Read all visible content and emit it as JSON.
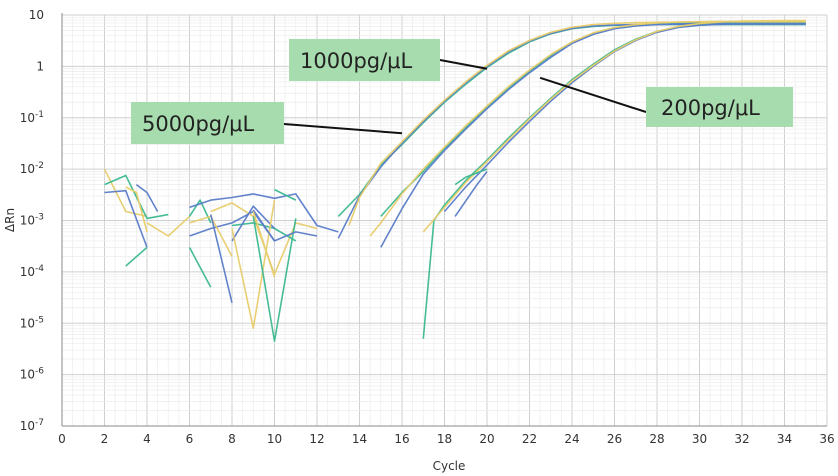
{
  "chart_data": {
    "type": "line",
    "title": "",
    "xlabel": "Cycle",
    "ylabel": "ΔRn",
    "xlim": [
      0,
      36
    ],
    "ylim": [
      1e-07,
      10
    ],
    "y_scale": "log",
    "grid": true,
    "x_ticks": [
      "0",
      "2",
      "4",
      "6",
      "8",
      "10",
      "12",
      "14",
      "16",
      "18",
      "20",
      "22",
      "24",
      "26",
      "28",
      "30",
      "32",
      "34",
      "36"
    ],
    "y_ticks": [
      {
        "value": 10,
        "base": "10",
        "exp": ""
      },
      {
        "value": 1,
        "base": "1",
        "exp": ""
      },
      {
        "value": 0.1,
        "base": "10",
        "exp": "-1"
      },
      {
        "value": 0.01,
        "base": "10",
        "exp": "-2"
      },
      {
        "value": 0.001,
        "base": "10",
        "exp": "-3"
      },
      {
        "value": 0.0001,
        "base": "10",
        "exp": "-4"
      },
      {
        "value": 1e-05,
        "base": "10",
        "exp": "-5"
      },
      {
        "value": 1e-06,
        "base": "10",
        "exp": "-6"
      },
      {
        "value": 1e-07,
        "base": "10",
        "exp": "-7"
      }
    ],
    "colors": {
      "green": "#3cb890",
      "blue": "#5a7cc8",
      "yellow": "#e8cc6a",
      "grid": "#d8d8d8",
      "callout_bg": "#a7dcae"
    },
    "annotations": [
      {
        "text": "1000pg/μL",
        "pointer_to": [
          20.0,
          0.9
        ]
      },
      {
        "text": "5000pg/μL",
        "pointer_to": [
          16.0,
          0.05
        ]
      },
      {
        "text": "200pg/μL",
        "pointer_to": [
          22.5,
          0.6
        ]
      }
    ],
    "series": [
      {
        "color": "green",
        "x": [
          13,
          14,
          15,
          16,
          17,
          18,
          19,
          20,
          21,
          22,
          23,
          24,
          25,
          26,
          27,
          28,
          29,
          30,
          31,
          32,
          33,
          34,
          35
        ],
        "y": [
          0.0012,
          0.0032,
          0.012,
          0.03,
          0.08,
          0.2,
          0.45,
          0.95,
          1.8,
          3.0,
          4.3,
          5.4,
          6.0,
          6.3,
          6.4,
          6.5,
          6.5,
          6.5,
          6.5,
          6.5,
          6.5,
          6.5,
          6.5
        ]
      },
      {
        "color": "blue",
        "x": [
          13,
          14,
          15,
          16,
          17,
          18,
          19,
          20,
          21,
          22,
          23,
          24,
          25,
          26,
          27,
          28,
          29,
          30,
          31,
          32,
          33,
          34,
          35
        ],
        "y": [
          0.00045,
          0.003,
          0.011,
          0.032,
          0.085,
          0.21,
          0.48,
          1.0,
          1.9,
          3.1,
          4.4,
          5.5,
          6.1,
          6.4,
          6.5,
          6.6,
          6.6,
          6.6,
          6.6,
          6.6,
          6.6,
          6.6,
          6.6
        ]
      },
      {
        "color": "yellow",
        "x": [
          13.5,
          14,
          15,
          16,
          17,
          18,
          19,
          20,
          21,
          22,
          23,
          24,
          25,
          26,
          27,
          28,
          29,
          30,
          31,
          32,
          33,
          34,
          35
        ],
        "y": [
          0.0008,
          0.0028,
          0.013,
          0.034,
          0.09,
          0.22,
          0.5,
          1.05,
          2.0,
          3.2,
          4.6,
          5.8,
          6.5,
          6.9,
          7.1,
          7.2,
          7.3,
          7.3,
          7.3,
          7.3,
          7.3,
          7.3,
          7.3
        ]
      },
      {
        "color": "green",
        "x": [
          15,
          16,
          17,
          18,
          19,
          20,
          21,
          22,
          23,
          24,
          25,
          26,
          27,
          28,
          29,
          30,
          31,
          32,
          33,
          34,
          35
        ],
        "y": [
          0.0012,
          0.0035,
          0.009,
          0.025,
          0.065,
          0.16,
          0.37,
          0.8,
          1.6,
          2.9,
          4.3,
          5.5,
          6.2,
          6.6,
          6.8,
          6.9,
          6.9,
          6.9,
          6.9,
          6.9,
          6.9
        ]
      },
      {
        "color": "blue",
        "x": [
          15,
          16,
          17,
          18,
          19,
          20,
          21,
          22,
          23,
          24,
          25,
          26,
          27,
          28,
          29,
          30,
          31,
          32,
          33,
          34,
          35
        ],
        "y": [
          0.0003,
          0.0017,
          0.008,
          0.023,
          0.06,
          0.15,
          0.35,
          0.75,
          1.5,
          2.8,
          4.2,
          5.4,
          6.1,
          6.5,
          6.7,
          6.8,
          6.8,
          6.8,
          6.8,
          6.8,
          6.8
        ]
      },
      {
        "color": "yellow",
        "x": [
          14.5,
          15,
          16,
          17,
          18,
          19,
          20,
          21,
          22,
          23,
          24,
          25,
          26,
          27,
          28,
          29,
          30,
          31,
          32,
          33,
          34,
          35
        ],
        "y": [
          0.0005,
          0.0009,
          0.0033,
          0.01,
          0.027,
          0.07,
          0.17,
          0.4,
          0.85,
          1.7,
          3.0,
          4.5,
          5.7,
          6.5,
          7.0,
          7.3,
          7.4,
          7.5,
          7.5,
          7.5,
          7.5,
          7.5
        ]
      },
      {
        "color": "green",
        "x": [
          17,
          17.5,
          18,
          19,
          20,
          21,
          22,
          23,
          24,
          25,
          26,
          27,
          28,
          29,
          30,
          31,
          32,
          33,
          34,
          35
        ],
        "y": [
          5e-06,
          0.001,
          0.002,
          0.006,
          0.015,
          0.04,
          0.1,
          0.24,
          0.55,
          1.1,
          2.1,
          3.4,
          4.8,
          5.8,
          6.4,
          6.6,
          6.7,
          6.7,
          6.7,
          6.7
        ]
      },
      {
        "color": "blue",
        "x": [
          18,
          19,
          20,
          21,
          22,
          23,
          24,
          25,
          26,
          27,
          28,
          29,
          30,
          31,
          32,
          33,
          34,
          35
        ],
        "y": [
          0.0015,
          0.0045,
          0.012,
          0.033,
          0.085,
          0.21,
          0.48,
          1.0,
          1.95,
          3.2,
          4.6,
          5.7,
          6.3,
          6.6,
          6.7,
          6.7,
          6.7,
          6.7
        ]
      },
      {
        "color": "yellow",
        "x": [
          17,
          18,
          19,
          20,
          21,
          22,
          23,
          24,
          25,
          26,
          27,
          28,
          29,
          30,
          31,
          32,
          33,
          34,
          35
        ],
        "y": [
          0.0006,
          0.0018,
          0.0055,
          0.014,
          0.037,
          0.095,
          0.23,
          0.52,
          1.05,
          2.0,
          3.3,
          4.8,
          6.0,
          6.8,
          7.3,
          7.6,
          7.7,
          7.8,
          7.8
        ]
      },
      {
        "color": "green",
        "x": [
          18.5,
          19,
          20
        ],
        "y": [
          0.005,
          0.007,
          0.01
        ]
      },
      {
        "color": "blue",
        "x": [
          18.5,
          19.5,
          20
        ],
        "y": [
          0.0012,
          0.0048,
          0.009
        ]
      },
      {
        "color": "yellow",
        "x": [
          2,
          3,
          4
        ],
        "y": [
          0.01,
          0.0015,
          0.0012
        ]
      },
      {
        "color": "green",
        "x": [
          2,
          3,
          4,
          5
        ],
        "y": [
          0.005,
          0.0075,
          0.0011,
          0.0013
        ]
      },
      {
        "color": "blue",
        "x": [
          2,
          3,
          4
        ],
        "y": [
          0.0035,
          0.0038,
          0.0003
        ]
      },
      {
        "color": "green",
        "x": [
          3,
          4
        ],
        "y": [
          0.00013,
          0.0003
        ]
      },
      {
        "color": "yellow",
        "x": [
          3,
          3.5,
          4
        ],
        "y": [
          0.0045,
          0.0035,
          0.0006
        ]
      },
      {
        "color": "blue",
        "x": [
          3.5,
          4,
          4.5
        ],
        "y": [
          0.005,
          0.0035,
          0.0015
        ]
      },
      {
        "color": "yellow",
        "x": [
          4,
          5,
          6
        ],
        "y": [
          0.0009,
          0.0005,
          0.0012
        ]
      },
      {
        "color": "green",
        "x": [
          6,
          6.5,
          7
        ],
        "y": [
          0.0012,
          0.0025,
          0.0009
        ]
      },
      {
        "color": "blue",
        "x": [
          6,
          7,
          8,
          9,
          10,
          11,
          12,
          13
        ],
        "y": [
          0.0018,
          0.0025,
          0.0028,
          0.0033,
          0.0027,
          0.0033,
          0.0008,
          0.0006
        ]
      },
      {
        "color": "blue",
        "x": [
          6,
          7,
          8,
          9,
          10
        ],
        "y": [
          0.0005,
          0.0007,
          0.0009,
          0.0015,
          0.0004
        ]
      },
      {
        "color": "green",
        "x": [
          6,
          7
        ],
        "y": [
          0.0003,
          5e-05
        ]
      },
      {
        "color": "yellow",
        "x": [
          6,
          7,
          8
        ],
        "y": [
          0.0009,
          0.0012,
          0.0002
        ]
      },
      {
        "color": "yellow",
        "x": [
          7,
          8,
          9,
          10,
          11,
          12
        ],
        "y": [
          0.0015,
          0.0022,
          0.0012,
          9e-05,
          0.0009,
          0.0007
        ]
      },
      {
        "color": "blue",
        "x": [
          7,
          8
        ],
        "y": [
          0.0013,
          2.5e-05
        ]
      },
      {
        "color": "green",
        "x": [
          8,
          9,
          10,
          11
        ],
        "y": [
          0.0008,
          0.0009,
          0.0007,
          0.0004
        ]
      },
      {
        "color": "blue",
        "x": [
          8,
          9,
          10
        ],
        "y": [
          0.0004,
          0.0019,
          0.0007
        ]
      },
      {
        "color": "yellow",
        "x": [
          8,
          9,
          10
        ],
        "y": [
          0.0007,
          8e-06,
          0.0025
        ]
      },
      {
        "color": "green",
        "x": [
          9,
          10,
          11
        ],
        "y": [
          0.0012,
          4.5e-06,
          0.0011
        ]
      },
      {
        "color": "blue",
        "x": [
          9,
          10,
          11,
          12
        ],
        "y": [
          0.0016,
          0.0004,
          0.0006,
          0.0005
        ]
      },
      {
        "color": "yellow",
        "x": [
          9,
          10
        ],
        "y": [
          0.0015,
          8e-05
        ]
      },
      {
        "color": "green",
        "x": [
          10,
          11
        ],
        "y": [
          0.004,
          0.0025
        ]
      }
    ]
  }
}
